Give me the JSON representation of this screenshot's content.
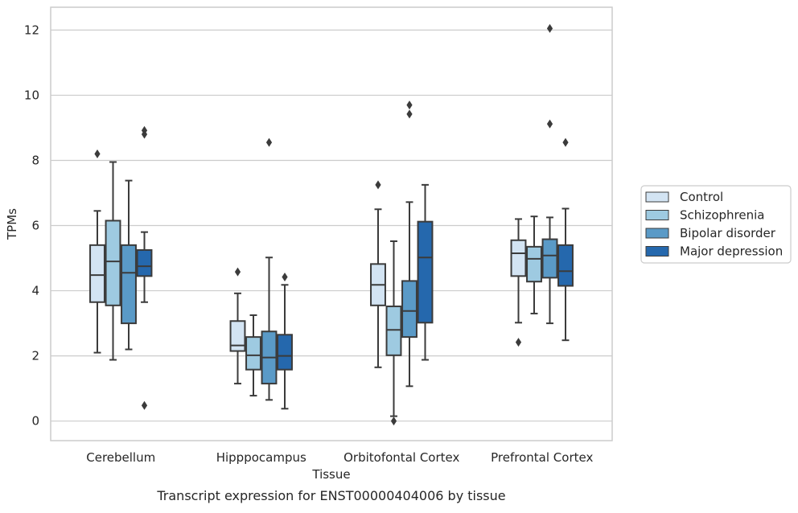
{
  "chart_data": {
    "type": "boxplot",
    "title": "Transcript expression for ENST00000404006 by tissue",
    "xlabel": "Tissue",
    "ylabel": "TPMs",
    "ylim": [
      -0.6,
      12.7
    ],
    "yticks": [
      0,
      2,
      4,
      6,
      8,
      10,
      12
    ],
    "grid": true,
    "legend_position": "right",
    "categories": [
      "Cerebellum",
      "Hipppocampus",
      "Orbitofontal Cortex",
      "Prefrontal Cortex"
    ],
    "series": [
      {
        "name": "Control",
        "color": "#d3e4f3",
        "boxes": [
          {
            "whislo": 2.1,
            "q1": 3.65,
            "med": 4.48,
            "q3": 5.4,
            "whishi": 6.45,
            "fliers": [
              8.2
            ]
          },
          {
            "whislo": 1.15,
            "q1": 2.15,
            "med": 2.32,
            "q3": 3.07,
            "whishi": 3.92,
            "fliers": [
              4.58
            ]
          },
          {
            "whislo": 1.65,
            "q1": 3.55,
            "med": 4.18,
            "q3": 4.82,
            "whishi": 6.5,
            "fliers": [
              7.25
            ]
          },
          {
            "whislo": 3.02,
            "q1": 4.45,
            "med": 5.15,
            "q3": 5.55,
            "whishi": 6.2,
            "fliers": [
              2.42
            ]
          }
        ]
      },
      {
        "name": "Schizophrenia",
        "color": "#9ecae1",
        "boxes": [
          {
            "whislo": 1.88,
            "q1": 3.55,
            "med": 4.9,
            "q3": 6.15,
            "whishi": 7.95,
            "fliers": []
          },
          {
            "whislo": 0.78,
            "q1": 1.58,
            "med": 2.02,
            "q3": 2.58,
            "whishi": 3.25,
            "fliers": []
          },
          {
            "whislo": 0.15,
            "q1": 2.02,
            "med": 2.8,
            "q3": 3.52,
            "whishi": 5.52,
            "fliers": [
              0.0
            ]
          },
          {
            "whislo": 3.3,
            "q1": 4.28,
            "med": 4.98,
            "q3": 5.35,
            "whishi": 6.28,
            "fliers": []
          }
        ]
      },
      {
        "name": "Bipolar disorder",
        "color": "#5a9ac7",
        "boxes": [
          {
            "whislo": 2.2,
            "q1": 3.0,
            "med": 4.55,
            "q3": 5.4,
            "whishi": 7.38,
            "fliers": []
          },
          {
            "whislo": 0.65,
            "q1": 1.15,
            "med": 1.95,
            "q3": 2.75,
            "whishi": 5.02,
            "fliers": [
              8.55
            ]
          },
          {
            "whislo": 1.07,
            "q1": 2.58,
            "med": 3.38,
            "q3": 4.3,
            "whishi": 6.72,
            "fliers": [
              9.42,
              9.7
            ]
          },
          {
            "whislo": 3.0,
            "q1": 4.4,
            "med": 5.08,
            "q3": 5.58,
            "whishi": 6.25,
            "fliers": [
              9.12,
              12.05
            ]
          }
        ]
      },
      {
        "name": "Major depression",
        "color": "#2568ad",
        "boxes": [
          {
            "whislo": 3.65,
            "q1": 4.45,
            "med": 4.75,
            "q3": 5.25,
            "whishi": 5.8,
            "fliers": [
              0.48,
              8.8,
              8.92
            ]
          },
          {
            "whislo": 0.38,
            "q1": 1.58,
            "med": 2.0,
            "q3": 2.65,
            "whishi": 4.18,
            "fliers": [
              4.42
            ]
          },
          {
            "whislo": 1.88,
            "q1": 3.02,
            "med": 5.02,
            "q3": 6.12,
            "whishi": 7.25,
            "fliers": []
          },
          {
            "whislo": 2.48,
            "q1": 4.15,
            "med": 4.6,
            "q3": 5.4,
            "whishi": 6.52,
            "fliers": [
              8.55
            ]
          }
        ]
      }
    ]
  }
}
